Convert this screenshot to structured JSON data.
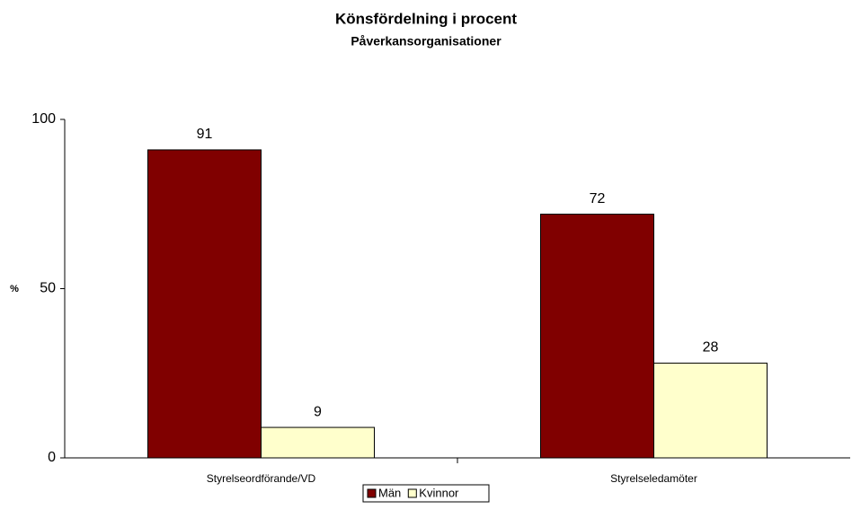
{
  "chart_data": {
    "type": "bar",
    "title": "Könsfördelning i procent",
    "subtitle": "Påverkansorganisationer",
    "y_label": "%",
    "categories": [
      "Styrelseordförande/VD",
      "Styrelseledamöter"
    ],
    "series": [
      {
        "name": "Män",
        "color": "#800000",
        "values": [
          91,
          72
        ]
      },
      {
        "name": "Kvinnor",
        "color": "#ffffcc",
        "values": [
          9,
          28
        ]
      }
    ],
    "ylim": [
      0,
      100
    ],
    "yticks": [
      0,
      50,
      100
    ],
    "grid": false,
    "legend": "bottom"
  }
}
